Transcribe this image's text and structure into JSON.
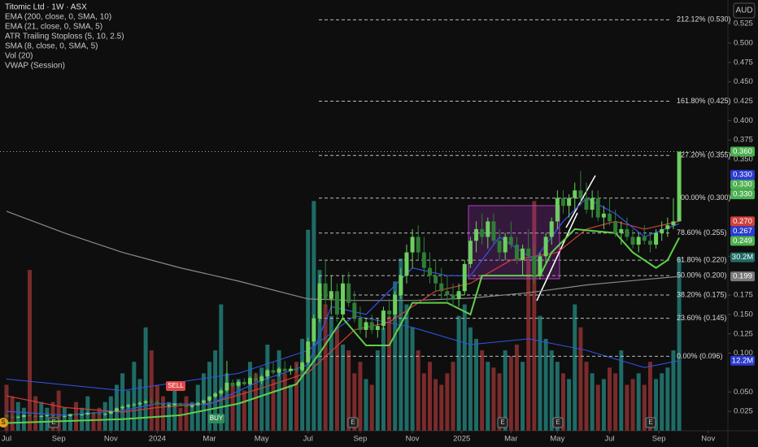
{
  "chart_data": {
    "type": "candlestick",
    "title": "Titomic Ltd · 1W · ASX",
    "indicator_legend": [
      "EMA (200, close, 0, SMA, 10)",
      "EMA (21, close, 0, SMA, 5)",
      "ATR Trailing Stoploss (5, 10, 2.5)",
      "SMA (8, close, 0, SMA, 5)",
      "Vol (20)",
      "VWAP (Session)"
    ],
    "currency": "AUD",
    "up_color": "#6ccf5e",
    "down_color": "#2f7d36",
    "volume_up_color": "#1f6b66",
    "volume_down_color": "#7a2b2b",
    "candles": [
      [
        0.02,
        0.022,
        0.017,
        0.018
      ],
      [
        0.018,
        0.02,
        0.016,
        0.017
      ],
      [
        0.017,
        0.019,
        0.016,
        0.018
      ],
      [
        0.018,
        0.021,
        0.017,
        0.02
      ],
      [
        0.02,
        0.022,
        0.018,
        0.019
      ],
      [
        0.019,
        0.021,
        0.017,
        0.018
      ],
      [
        0.018,
        0.02,
        0.017,
        0.019
      ],
      [
        0.019,
        0.021,
        0.018,
        0.02
      ],
      [
        0.02,
        0.021,
        0.018,
        0.019
      ],
      [
        0.019,
        0.02,
        0.017,
        0.018
      ],
      [
        0.018,
        0.02,
        0.017,
        0.019
      ],
      [
        0.019,
        0.022,
        0.018,
        0.021
      ],
      [
        0.021,
        0.023,
        0.019,
        0.02
      ],
      [
        0.02,
        0.022,
        0.019,
        0.021
      ],
      [
        0.021,
        0.024,
        0.02,
        0.023
      ],
      [
        0.023,
        0.025,
        0.021,
        0.022
      ],
      [
        0.022,
        0.024,
        0.02,
        0.021
      ],
      [
        0.021,
        0.023,
        0.019,
        0.022
      ],
      [
        0.022,
        0.026,
        0.021,
        0.025
      ],
      [
        0.025,
        0.03,
        0.024,
        0.029
      ],
      [
        0.029,
        0.033,
        0.027,
        0.031
      ],
      [
        0.031,
        0.035,
        0.029,
        0.033
      ],
      [
        0.033,
        0.036,
        0.031,
        0.034
      ],
      [
        0.034,
        0.038,
        0.032,
        0.036
      ],
      [
        0.036,
        0.04,
        0.034,
        0.038
      ],
      [
        0.038,
        0.042,
        0.035,
        0.037
      ],
      [
        0.037,
        0.039,
        0.033,
        0.034
      ],
      [
        0.034,
        0.036,
        0.031,
        0.032
      ],
      [
        0.032,
        0.035,
        0.03,
        0.033
      ],
      [
        0.033,
        0.036,
        0.031,
        0.035
      ],
      [
        0.035,
        0.037,
        0.032,
        0.033
      ],
      [
        0.033,
        0.035,
        0.03,
        0.031
      ],
      [
        0.031,
        0.034,
        0.029,
        0.033
      ],
      [
        0.033,
        0.037,
        0.032,
        0.036
      ],
      [
        0.036,
        0.04,
        0.034,
        0.039
      ],
      [
        0.039,
        0.045,
        0.037,
        0.044
      ],
      [
        0.044,
        0.05,
        0.042,
        0.048
      ],
      [
        0.048,
        0.055,
        0.045,
        0.052
      ],
      [
        0.052,
        0.09,
        0.05,
        0.062
      ],
      [
        0.062,
        0.066,
        0.055,
        0.058
      ],
      [
        0.058,
        0.065,
        0.056,
        0.063
      ],
      [
        0.063,
        0.068,
        0.058,
        0.06
      ],
      [
        0.06,
        0.07,
        0.058,
        0.068
      ],
      [
        0.068,
        0.075,
        0.062,
        0.064
      ],
      [
        0.064,
        0.072,
        0.06,
        0.07
      ],
      [
        0.07,
        0.08,
        0.066,
        0.078
      ],
      [
        0.078,
        0.088,
        0.072,
        0.075
      ],
      [
        0.075,
        0.082,
        0.07,
        0.08
      ],
      [
        0.08,
        0.09,
        0.074,
        0.077
      ],
      [
        0.077,
        0.084,
        0.072,
        0.08
      ],
      [
        0.08,
        0.086,
        0.075,
        0.078
      ],
      [
        0.078,
        0.09,
        0.076,
        0.088
      ],
      [
        0.088,
        0.12,
        0.085,
        0.115
      ],
      [
        0.115,
        0.15,
        0.11,
        0.145
      ],
      [
        0.145,
        0.2,
        0.14,
        0.19
      ],
      [
        0.19,
        0.22,
        0.16,
        0.17
      ],
      [
        0.17,
        0.2,
        0.15,
        0.18
      ],
      [
        0.18,
        0.19,
        0.14,
        0.15
      ],
      [
        0.15,
        0.2,
        0.145,
        0.19
      ],
      [
        0.19,
        0.205,
        0.16,
        0.165
      ],
      [
        0.165,
        0.18,
        0.14,
        0.145
      ],
      [
        0.145,
        0.16,
        0.125,
        0.13
      ],
      [
        0.13,
        0.145,
        0.12,
        0.14
      ],
      [
        0.14,
        0.15,
        0.125,
        0.13
      ],
      [
        0.13,
        0.145,
        0.12,
        0.135
      ],
      [
        0.135,
        0.16,
        0.13,
        0.155
      ],
      [
        0.155,
        0.17,
        0.145,
        0.15
      ],
      [
        0.15,
        0.18,
        0.145,
        0.175
      ],
      [
        0.175,
        0.21,
        0.17,
        0.2
      ],
      [
        0.2,
        0.24,
        0.19,
        0.23
      ],
      [
        0.23,
        0.26,
        0.21,
        0.25
      ],
      [
        0.25,
        0.265,
        0.22,
        0.23
      ],
      [
        0.23,
        0.25,
        0.2,
        0.21
      ],
      [
        0.21,
        0.23,
        0.19,
        0.2
      ],
      [
        0.2,
        0.22,
        0.18,
        0.19
      ],
      [
        0.19,
        0.21,
        0.17,
        0.18
      ],
      [
        0.18,
        0.2,
        0.165,
        0.175
      ],
      [
        0.175,
        0.19,
        0.16,
        0.17
      ],
      [
        0.17,
        0.19,
        0.16,
        0.18
      ],
      [
        0.18,
        0.22,
        0.175,
        0.215
      ],
      [
        0.215,
        0.25,
        0.21,
        0.245
      ],
      [
        0.245,
        0.27,
        0.23,
        0.26
      ],
      [
        0.26,
        0.28,
        0.24,
        0.25
      ],
      [
        0.25,
        0.275,
        0.235,
        0.27
      ],
      [
        0.27,
        0.28,
        0.24,
        0.245
      ],
      [
        0.245,
        0.26,
        0.22,
        0.23
      ],
      [
        0.23,
        0.255,
        0.22,
        0.25
      ],
      [
        0.25,
        0.27,
        0.235,
        0.24
      ],
      [
        0.24,
        0.25,
        0.215,
        0.22
      ],
      [
        0.22,
        0.24,
        0.2,
        0.235
      ],
      [
        0.235,
        0.26,
        0.22,
        0.225
      ],
      [
        0.225,
        0.24,
        0.19,
        0.2
      ],
      [
        0.2,
        0.23,
        0.195,
        0.225
      ],
      [
        0.225,
        0.255,
        0.215,
        0.25
      ],
      [
        0.25,
        0.275,
        0.24,
        0.27
      ],
      [
        0.27,
        0.31,
        0.26,
        0.3
      ],
      [
        0.3,
        0.31,
        0.28,
        0.29
      ],
      [
        0.29,
        0.305,
        0.275,
        0.3
      ],
      [
        0.3,
        0.32,
        0.285,
        0.31
      ],
      [
        0.31,
        0.335,
        0.29,
        0.3
      ],
      [
        0.3,
        0.32,
        0.28,
        0.285
      ],
      [
        0.285,
        0.31,
        0.275,
        0.3
      ],
      [
        0.3,
        0.31,
        0.27,
        0.275
      ],
      [
        0.275,
        0.29,
        0.26,
        0.28
      ],
      [
        0.28,
        0.3,
        0.265,
        0.27
      ],
      [
        0.27,
        0.285,
        0.25,
        0.255
      ],
      [
        0.255,
        0.27,
        0.24,
        0.26
      ],
      [
        0.26,
        0.275,
        0.245,
        0.25
      ],
      [
        0.25,
        0.26,
        0.235,
        0.24
      ],
      [
        0.24,
        0.255,
        0.23,
        0.25
      ],
      [
        0.25,
        0.265,
        0.24,
        0.245
      ],
      [
        0.245,
        0.255,
        0.23,
        0.24
      ],
      [
        0.24,
        0.26,
        0.235,
        0.255
      ],
      [
        0.255,
        0.27,
        0.245,
        0.26
      ],
      [
        0.26,
        0.275,
        0.25,
        0.265
      ],
      [
        0.265,
        0.3,
        0.26,
        0.27
      ],
      [
        0.27,
        0.36,
        0.27,
        0.36
      ]
    ],
    "volume": [
      8,
      6,
      5,
      4,
      28,
      6,
      5,
      4,
      5,
      7,
      4,
      3,
      5,
      4,
      6,
      3,
      4,
      5,
      6,
      8,
      10,
      7,
      12,
      9,
      18,
      14,
      8,
      6,
      5,
      7,
      4,
      6,
      5,
      8,
      10,
      12,
      14,
      22,
      10,
      8,
      9,
      7,
      12,
      10,
      11,
      15,
      9,
      14,
      10,
      8,
      12,
      16,
      35,
      40,
      28,
      22,
      20,
      18,
      15,
      14,
      10,
      12,
      9,
      8,
      14,
      18,
      20,
      26,
      30,
      22,
      18,
      14,
      10,
      12,
      9,
      8,
      10,
      12,
      20,
      22,
      18,
      16,
      14,
      12,
      11,
      10,
      14,
      13,
      15,
      12,
      30,
      40,
      20,
      16,
      14,
      12,
      10,
      9,
      22,
      18,
      12,
      10,
      8,
      9,
      11,
      10,
      14,
      8,
      9,
      10,
      8,
      12,
      9,
      10,
      11,
      14,
      30.2
    ],
    "volume_ylim": [
      0,
      75
    ],
    "overlays": [
      {
        "name": "EMA 200",
        "color": "#8a8a8a",
        "x": [
          0,
          10,
          20,
          30,
          40,
          52,
          60,
          70,
          80,
          90,
          100,
          110,
          116
        ],
        "values": [
          0.283,
          0.255,
          0.23,
          0.21,
          0.193,
          0.17,
          0.168,
          0.168,
          0.171,
          0.178,
          0.188,
          0.195,
          0.199
        ]
      },
      {
        "name": "EMA 21",
        "color": "#d0403a",
        "x": [
          0,
          10,
          20,
          26,
          35,
          44,
          52,
          60,
          66,
          74,
          80,
          87,
          95,
          100,
          105,
          110,
          116
        ],
        "values": [
          0.045,
          0.03,
          0.024,
          0.03,
          0.035,
          0.055,
          0.075,
          0.13,
          0.14,
          0.18,
          0.19,
          0.22,
          0.23,
          0.26,
          0.27,
          0.26,
          0.27
        ]
      },
      {
        "name": "SMA 8",
        "color": "#3355ee",
        "x": [
          0,
          10,
          20,
          26,
          35,
          44,
          52,
          56,
          62,
          70,
          76,
          80,
          85,
          91,
          96,
          100,
          105,
          110,
          116
        ],
        "values": [
          0.025,
          0.02,
          0.026,
          0.035,
          0.034,
          0.065,
          0.085,
          0.16,
          0.15,
          0.21,
          0.2,
          0.2,
          0.25,
          0.22,
          0.27,
          0.3,
          0.28,
          0.25,
          0.267
        ]
      },
      {
        "name": "ATR Stop",
        "color": "#5fcf4a",
        "x": [
          0,
          20,
          30,
          40,
          50,
          54,
          58,
          62,
          66,
          70,
          76,
          80,
          82,
          92,
          94,
          98,
          105,
          108,
          112,
          114,
          116
        ],
        "values": [
          0.01,
          0.015,
          0.02,
          0.035,
          0.06,
          0.1,
          0.145,
          0.11,
          0.11,
          0.165,
          0.165,
          0.15,
          0.2,
          0.2,
          0.23,
          0.26,
          0.255,
          0.23,
          0.21,
          0.22,
          0.249
        ]
      }
    ],
    "volume_ma": {
      "color": "#3355ee",
      "x": [
        0,
        20,
        40,
        52,
        60,
        70,
        80,
        90,
        100,
        110,
        116
      ],
      "values": [
        9,
        7,
        10,
        14,
        20,
        18,
        15,
        16,
        14,
        11,
        12.2
      ]
    },
    "fib_levels": [
      {
        "value": 0.53,
        "label": "212.12% (0.530)"
      },
      {
        "value": 0.425,
        "label": "161.80% (0.425)"
      },
      {
        "value": 0.355,
        "label": "127.20% (0.355)"
      },
      {
        "value": 0.3,
        "label": "100.00% (0.300)"
      },
      {
        "value": 0.255,
        "label": "78.60% (0.255)"
      },
      {
        "value": 0.22,
        "label": "61.80% (0.220)"
      },
      {
        "value": 0.2,
        "label": "50.00% (0.200)"
      },
      {
        "value": 0.175,
        "label": "38.20% (0.175)"
      },
      {
        "value": 0.145,
        "label": "23.60% (0.145)"
      },
      {
        "value": 0.096,
        "label": "0.00% (0.096)"
      }
    ],
    "price_badges": [
      {
        "value": 0.36,
        "label": "0.360",
        "color": "#4caf50"
      },
      {
        "value": 0.33,
        "label": "0.330",
        "color": "#2a3ad0"
      },
      {
        "value": 0.33,
        "label": "0.330",
        "color": "#4caf50"
      },
      {
        "value": 0.33,
        "label": "0.330",
        "color": "#4caf50"
      },
      {
        "value": 0.27,
        "label": "0.270",
        "color": "#d0403a"
      },
      {
        "value": 0.267,
        "label": "0.267",
        "color": "#2a3ad0"
      },
      {
        "value": 0.249,
        "label": "0.249",
        "color": "#4caf50"
      },
      {
        "value": 0.199,
        "label": "0.199",
        "color": "#787878"
      }
    ],
    "volume_badges": [
      {
        "value": 30.2,
        "label": "30.2M",
        "color": "#1f6b66"
      },
      {
        "value": 12.2,
        "label": "12.2M",
        "color": "#2a3ad0"
      }
    ],
    "signals": [
      "SELL",
      "BUY"
    ],
    "events": [
      "S",
      "E",
      "E",
      "E",
      "E",
      "E"
    ],
    "ylim": [
      0,
      0.5555
    ],
    "yticks": [
      0.025,
      {
        "value": 0.05,
        "label": "0.050"
      },
      {
        "value": 0.1,
        "label": "0.100"
      },
      0.125,
      {
        "value": 0.15,
        "label": "0.150"
      },
      0.175,
      0.225,
      {
        "value": 0.35,
        "label": "0.350"
      },
      0.375,
      {
        "value": 0.4,
        "label": "0.400"
      },
      0.425,
      {
        "value": 0.45,
        "label": "0.450"
      },
      0.475,
      {
        "value": 0.5,
        "label": "0.500"
      },
      0.525
    ],
    "xlim": [
      -1.12,
      124.4
    ],
    "xticks": [
      {
        "value": 0,
        "label": "Jul"
      },
      {
        "value": 9,
        "label": "Sep"
      },
      {
        "value": 18,
        "label": "Nov"
      },
      {
        "value": 26,
        "label": "2024"
      },
      {
        "value": 35,
        "label": "Mar"
      },
      {
        "value": 44,
        "label": "May"
      },
      {
        "value": 52,
        "label": "Jul"
      },
      {
        "value": 61,
        "label": "Sep"
      },
      {
        "value": 70,
        "label": "Nov"
      },
      {
        "value": 78.5,
        "label": "2025"
      },
      {
        "value": 87,
        "label": "Mar"
      },
      {
        "value": 95,
        "label": "May"
      },
      {
        "value": 104,
        "label": "Jul"
      },
      {
        "value": 112.5,
        "label": "Sep"
      },
      {
        "value": 121,
        "label": "Nov"
      }
    ]
  }
}
